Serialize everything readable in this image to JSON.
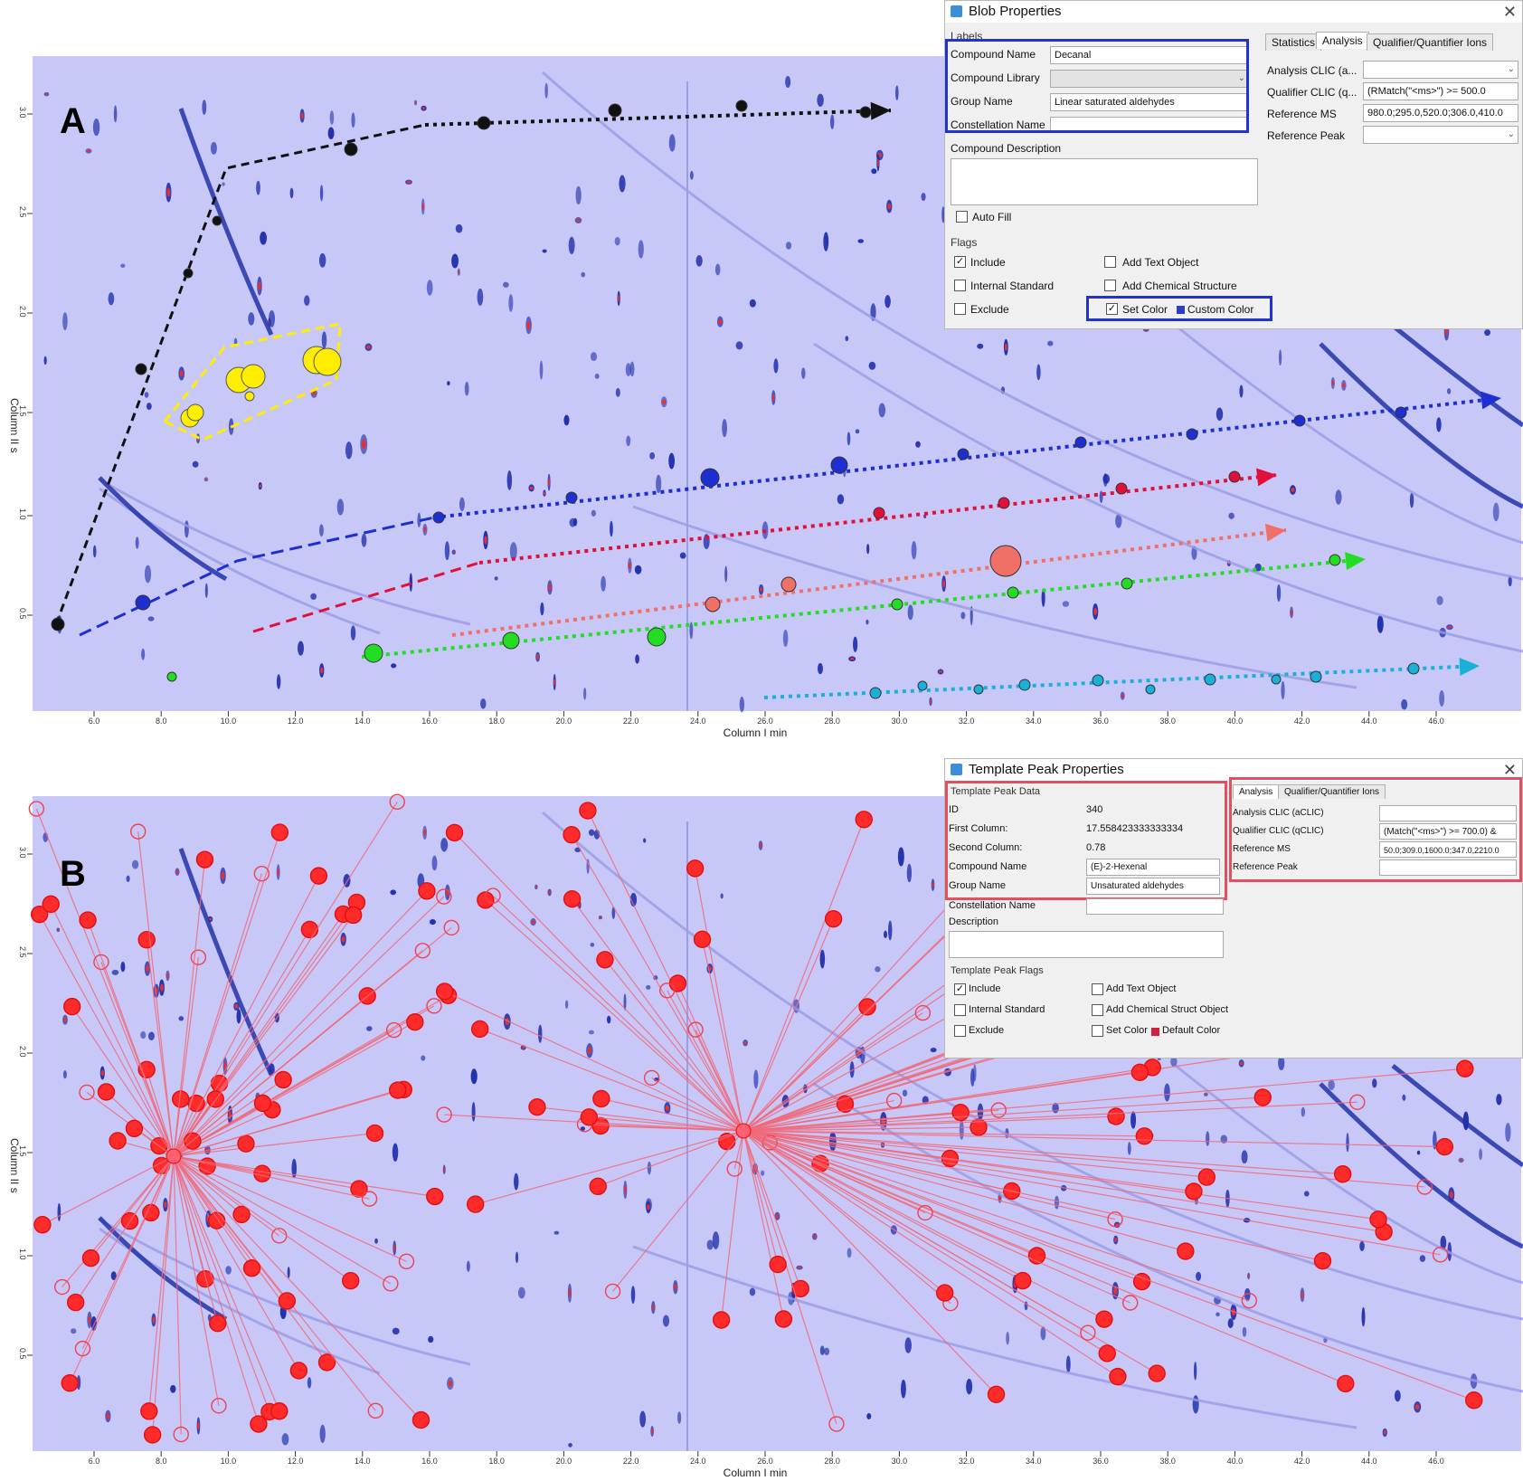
{
  "panel_a": {
    "letter": "A",
    "xaxis_label": "Column I min",
    "yaxis_label": "Column II s",
    "x_ticks": [
      "6.0",
      "8.0",
      "10.0",
      "12.0",
      "14.0",
      "16.0",
      "18.0",
      "20.0",
      "22.0",
      "24.0",
      "26.0",
      "28.0",
      "30.0",
      "32.0",
      "34.0",
      "36.0",
      "38.0",
      "40.0",
      "42.0",
      "44.0",
      "46.0"
    ],
    "y_ticks": [
      "3.0",
      "2.5",
      "2.0",
      "1.5",
      "1.0",
      "0.5"
    ],
    "dialog": {
      "title": "Blob Properties",
      "labels_group": "Labels",
      "compound_name_label": "Compound Name",
      "compound_name_value": "Decanal",
      "compound_library_label": "Compound Library",
      "group_name_label": "Group Name",
      "group_name_value": "Linear saturated aldehydes",
      "constellation_name_label": "Constellation Name",
      "compound_description_label": "Compound Description",
      "auto_fill_label": "Auto Fill",
      "flags_group": "Flags",
      "include_label": "Include",
      "internal_standard_label": "Internal Standard",
      "exclude_label": "Exclude",
      "add_text_object_label": "Add Text Object",
      "add_chemical_structure_label": "Add Chemical Structure",
      "set_color_label": "Set Color",
      "custom_color_label": "Custom Color",
      "custom_color": "#2b3fc4",
      "tabs": [
        "Statistics",
        "Analysis",
        "Qualifier/Quantifier Ions"
      ],
      "analysis_clic_label": "Analysis CLIC (a...",
      "qualifier_clic_label": "Qualifier CLIC (q...",
      "qualifier_clic_value": "(RMatch(\"<ms>\") >= 500.0",
      "reference_ms_label": "Reference MS",
      "reference_ms_value": "980.0;295.0,520.0;306.0,410.0",
      "reference_peak_label": "Reference Peak"
    }
  },
  "panel_b": {
    "letter": "B",
    "xaxis_label": "Column I min",
    "yaxis_label": "Column II s",
    "dialog": {
      "title": "Template Peak Properties",
      "data_group": "Template Peak Data",
      "id_label": "ID",
      "id_value": "340",
      "first_column_label": "First Column:",
      "first_column_value": "17.558423333333334",
      "second_column_label": "Second Column:",
      "second_column_value": "0.78",
      "compound_name_label": "Compound Name",
      "compound_name_value": "(E)-2-Hexenal",
      "group_name_label": "Group Name",
      "group_name_value": "Unsaturated aldehydes",
      "constellation_name_label": "Constellation Name",
      "description_label": "Description",
      "flags_group": "Template Peak Flags",
      "include_label": "Include",
      "internal_standard_label": "Internal Standard",
      "exclude_label": "Exclude",
      "add_text_object_label": "Add Text Object",
      "add_chemical_struct_label": "Add Chemical Struct Object",
      "set_color_label": "Set Color",
      "default_color_label": "Default Color",
      "default_color": "#d0203a",
      "tabs": [
        "Analysis",
        "Qualifier/Quantifier Ions"
      ],
      "analysis_clic_label": "Analysis CLIC (aCLIC)",
      "qualifier_clic_label": "Qualifier CLIC (qCLIC)",
      "qualifier_clic_value": "(Match(\"<ms>\") >= 700.0) &",
      "reference_ms_label": "Reference MS",
      "reference_ms_value": "50.0;309.0,1600.0;347.0,2210.0",
      "reference_peak_label": "Reference Peak"
    }
  },
  "colors": {
    "plot_bg": "#c8c8f8",
    "black_series": "#111111",
    "blue_series": "#1d2fd0",
    "red_series": "#e0103a",
    "salmon_series": "#f07068",
    "green_series": "#22dd22",
    "cyan_series": "#1ab0d8",
    "yellow_markers": "#ffee00",
    "template_red": "#ff2a2a"
  }
}
